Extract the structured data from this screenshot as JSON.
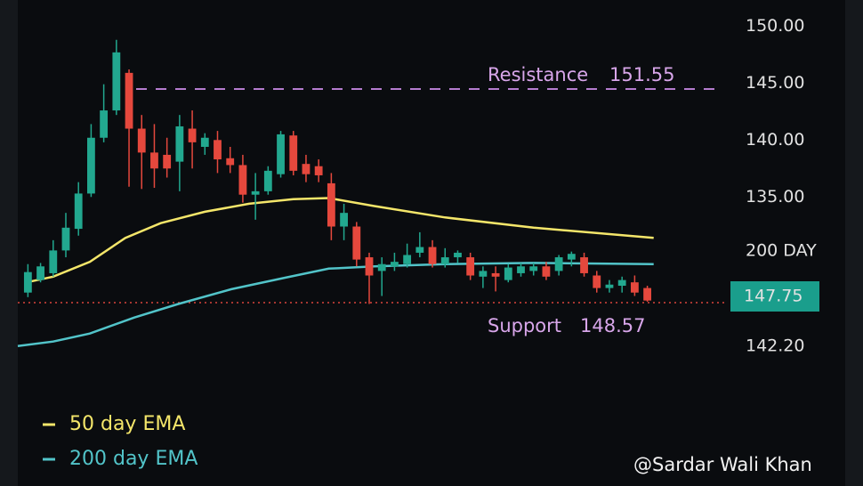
{
  "chart_data": {
    "type": "candlestick",
    "x": [
      1,
      2,
      3,
      4,
      5,
      6,
      7,
      8,
      9,
      10,
      11,
      12,
      13,
      14,
      15,
      16,
      17,
      18,
      19,
      20,
      21,
      22,
      23,
      24,
      25,
      26,
      27,
      28,
      29,
      30,
      31,
      32,
      33,
      34,
      35,
      36,
      37,
      38,
      39,
      40,
      41,
      42,
      43,
      44,
      45,
      46,
      47,
      48,
      49,
      50
    ],
    "open": [
      126.6,
      127.7,
      128.3,
      130.3,
      132.2,
      135.3,
      140.2,
      142.6,
      145.9,
      141.0,
      138.9,
      138.7,
      138.1,
      141.0,
      139.4,
      140.0,
      138.4,
      137.8,
      135.2,
      135.5,
      137.0,
      140.4,
      137.9,
      137.7,
      136.2,
      132.4,
      132.4,
      129.7,
      128.5,
      128.9,
      129.1,
      130.1,
      130.6,
      129.1,
      129.7,
      129.7,
      128.0,
      128.3,
      127.7,
      128.3,
      128.5,
      128.9,
      128.5,
      129.5,
      129.7,
      128.1,
      127.0,
      127.2,
      127.5,
      127.0
    ],
    "close": [
      128.4,
      128.9,
      130.3,
      132.3,
      135.3,
      140.2,
      142.6,
      147.7,
      141.0,
      138.9,
      137.5,
      137.5,
      141.2,
      139.8,
      140.2,
      138.3,
      137.8,
      135.2,
      135.5,
      137.3,
      140.5,
      137.3,
      137.0,
      136.9,
      132.4,
      133.6,
      129.5,
      128.1,
      129.1,
      129.3,
      129.9,
      130.6,
      129.1,
      129.7,
      130.1,
      128.1,
      128.5,
      128.0,
      128.8,
      128.9,
      128.9,
      128.0,
      129.7,
      130.0,
      128.3,
      127.0,
      127.3,
      127.7,
      126.6,
      125.9
    ],
    "high": [
      129.1,
      129.2,
      131.2,
      133.6,
      136.3,
      141.4,
      144.9,
      148.8,
      146.2,
      142.2,
      141.4,
      140.2,
      142.2,
      142.6,
      140.6,
      140.8,
      139.4,
      138.7,
      137.1,
      137.7,
      140.8,
      140.8,
      138.7,
      138.3,
      137.1,
      134.4,
      132.8,
      130.1,
      129.7,
      130.1,
      130.9,
      131.9,
      131.2,
      130.5,
      130.3,
      130.1,
      128.9,
      128.9,
      129.1,
      129.2,
      129.2,
      129.3,
      129.9,
      130.2,
      130.1,
      128.5,
      127.7,
      128.0,
      128.1,
      127.2
    ],
    "low": [
      126.2,
      127.5,
      128.0,
      129.7,
      131.6,
      135.0,
      139.8,
      142.2,
      135.9,
      135.7,
      135.8,
      136.7,
      135.5,
      137.5,
      138.7,
      137.1,
      137.1,
      134.5,
      133.0,
      135.2,
      136.7,
      136.9,
      136.3,
      136.3,
      131.2,
      131.2,
      128.9,
      125.6,
      126.3,
      128.5,
      128.8,
      129.7,
      128.8,
      128.8,
      129.2,
      127.7,
      127.0,
      126.7,
      127.5,
      128.0,
      128.1,
      127.7,
      128.1,
      128.9,
      128.0,
      126.6,
      126.6,
      126.6,
      126.3,
      125.8
    ],
    "up_color": "#22a88f",
    "down_color": "#e5483d",
    "series": [
      {
        "name": "50 day EMA",
        "color": "#f4e66a",
        "x": [
          0.9,
          3.0,
          5.9,
          8.7,
          11.5,
          15.0,
          18.5,
          22.0,
          24.8,
          28.4,
          34.0,
          41.0,
          50.5
        ],
        "values": [
          127.5,
          128.0,
          129.3,
          131.4,
          132.7,
          133.7,
          134.4,
          134.8,
          134.9,
          134.2,
          133.2,
          132.3,
          131.4
        ]
      },
      {
        "name": "200 day EMA",
        "color": "#52c4c9",
        "x": [
          0.2,
          3.0,
          5.9,
          9.4,
          12.9,
          17.1,
          21.3,
          24.8,
          28.4,
          34.0,
          41.0,
          50.5
        ],
        "values": [
          121.9,
          122.3,
          123.0,
          124.4,
          125.6,
          126.9,
          127.9,
          128.7,
          128.9,
          129.1,
          129.2,
          129.1
        ]
      }
    ],
    "xlim": [
      0.2,
      55.8
    ],
    "ylim": [
      110,
      152.3
    ],
    "yticks": [
      {
        "value": 150,
        "label": "150.00"
      },
      {
        "value": 145,
        "label": "145.00"
      },
      {
        "value": 140,
        "label": "140.00"
      },
      {
        "value": 135,
        "label": "135.00"
      }
    ],
    "side_labels": [
      "200 DAY",
      "147.75",
      "142.20"
    ],
    "resistance": {
      "label": "Resistance",
      "level": "151.55"
    },
    "support": {
      "label": "Support",
      "level": "148.57"
    },
    "watermark": "@Sardar Wali Khan"
  }
}
